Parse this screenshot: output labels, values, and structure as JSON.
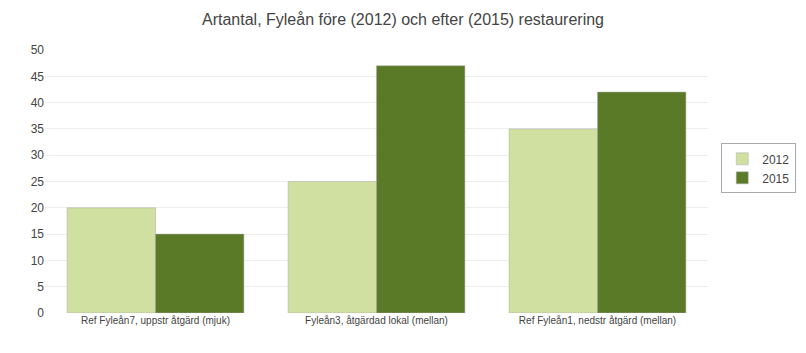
{
  "chart_data": {
    "type": "bar",
    "title": "Artantal, Fyleån före (2012) och efter (2015) restaurering",
    "categories": [
      "Ref Fyleån7, uppstr åtgärd (mjuk)",
      "Fyleån3, åtgärdad lokal (mellan)",
      "Ref Fyleån1, nedstr åtgärd (mellan)"
    ],
    "series": [
      {
        "name": "2012",
        "color": "#cfe0a0",
        "values": [
          20,
          25,
          35
        ]
      },
      {
        "name": "2015",
        "color": "#5a7a28",
        "values": [
          15,
          47,
          42
        ]
      }
    ],
    "ylim": [
      0,
      50
    ],
    "yticks": [
      0,
      5,
      10,
      15,
      20,
      25,
      30,
      35,
      40,
      45,
      50
    ],
    "grid": true,
    "legend": "right"
  }
}
